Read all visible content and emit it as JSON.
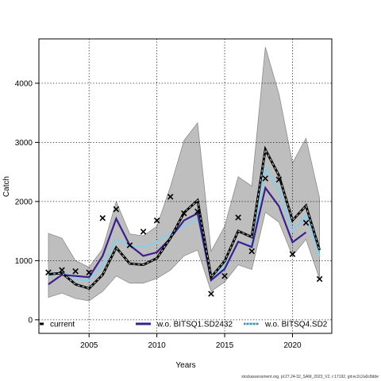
{
  "chart_data": {
    "type": "line",
    "title": "",
    "xlabel": "Years",
    "ylabel": "Catch",
    "xlim": [
      2001.3,
      2022.9
    ],
    "ylim": [
      -230,
      4750
    ],
    "x_ticks": [
      2005,
      2010,
      2015,
      2020
    ],
    "y_ticks": [
      0,
      1000,
      2000,
      3000,
      4000
    ],
    "grid": "dotted",
    "legend_position": "bottom",
    "confidence_band": {
      "years": [
        2002,
        2003,
        2004,
        2005,
        2006,
        2007,
        2008,
        2009,
        2010,
        2011,
        2012,
        2013,
        2014,
        2015,
        2016,
        2017,
        2018,
        2019,
        2020,
        2021,
        2022
      ],
      "lower": [
        380,
        450,
        360,
        320,
        480,
        740,
        620,
        620,
        700,
        840,
        1080,
        1180,
        480,
        640,
        930,
        850,
        1820,
        1650,
        1080,
        1360,
        690
      ],
      "upper": [
        1460,
        1380,
        1000,
        890,
        1200,
        2000,
        1450,
        1420,
        1580,
        2250,
        3030,
        3330,
        1160,
        1580,
        2420,
        2260,
        4610,
        3820,
        2650,
        3070,
        2060
      ]
    },
    "series": [
      {
        "name": "current",
        "color": "#000000",
        "style": "dashed-outline",
        "x": [
          2002,
          2003,
          2004,
          2005,
          2006,
          2007,
          2008,
          2009,
          2010,
          2011,
          2012,
          2013,
          2014,
          2015,
          2016,
          2017,
          2018,
          2019,
          2020,
          2021,
          2022
        ],
        "values": [
          770,
          790,
          600,
          530,
          760,
          1220,
          950,
          930,
          1040,
          1380,
          1810,
          2020,
          720,
          990,
          1500,
          1400,
          2880,
          2440,
          1680,
          1930,
          1180
        ]
      },
      {
        "name": "w.o. BITSQ1.SD2432",
        "color": "#3b1f8c",
        "style": "solid",
        "x": [
          2002,
          2003,
          2004,
          2005,
          2006,
          2007,
          2008,
          2009,
          2010,
          2011,
          2012,
          2013,
          2014,
          2015,
          2016,
          2017,
          2018,
          2019,
          2020,
          2021
        ],
        "values": [
          600,
          760,
          740,
          720,
          1080,
          1710,
          1260,
          1080,
          1140,
          1380,
          1680,
          1800,
          670,
          860,
          1320,
          1230,
          2230,
          1920,
          1310,
          1480
        ]
      },
      {
        "name": "w.o. BITSQ4.SD2",
        "color": "#87ceeb",
        "style": "solid",
        "x": [
          2002,
          2003,
          2004,
          2005,
          2006,
          2007,
          2008,
          2009,
          2010,
          2011,
          2012,
          2013,
          2014,
          2015,
          2016,
          2017,
          2018,
          2019,
          2020,
          2021,
          2022
        ],
        "values": [
          730,
          830,
          690,
          660,
          920,
          1360,
          1250,
          1230,
          1310,
          1470,
          1580,
          1720,
          700,
          900,
          1310,
          1260,
          2580,
          2180,
          1500,
          1760,
          1070
        ]
      }
    ],
    "observed": {
      "marker": "x",
      "x": [
        2002,
        2003,
        2004,
        2005,
        2006,
        2007,
        2008,
        2009,
        2010,
        2011,
        2012,
        2013,
        2014,
        2015,
        2016,
        2017,
        2018,
        2019,
        2020,
        2021,
        2022
      ],
      "values": [
        800,
        840,
        820,
        800,
        1720,
        1870,
        1260,
        1490,
        1680,
        2080,
        1800,
        1830,
        440,
        740,
        1730,
        1160,
        2390,
        2370,
        1110,
        1640,
        690
      ]
    }
  },
  "footer_text": "stockassessment.org, pl:27.24-32_SAM_2023_V2, r:17192, git:ec2c2a0c8dde"
}
